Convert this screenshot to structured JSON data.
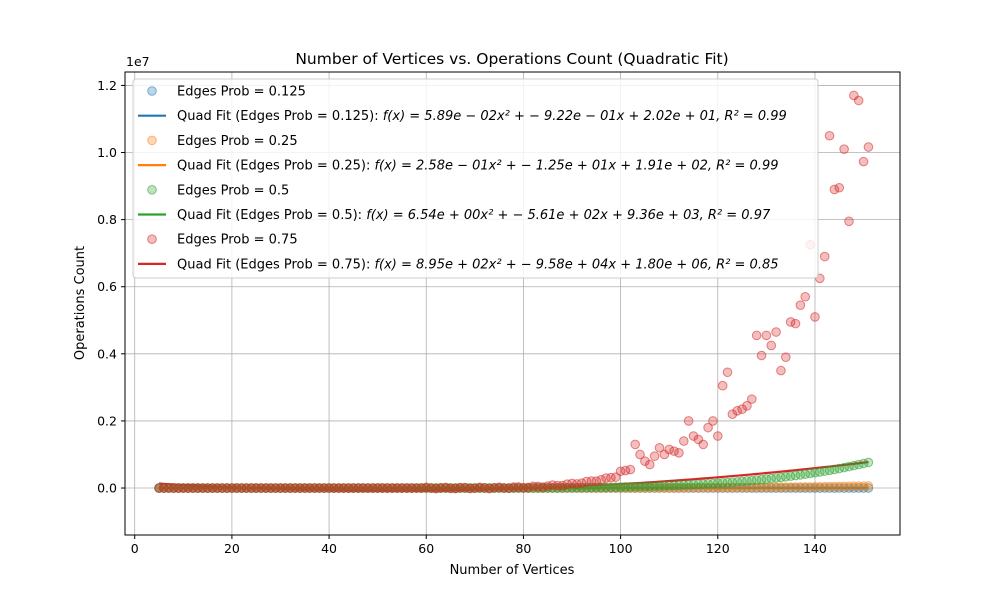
{
  "chart_data": {
    "type": "scatter",
    "title": "Number of Vertices vs. Operations Count (Quadratic Fit)",
    "xlabel": "Number of Vertices",
    "ylabel": "Operations Count",
    "y_scale_label": "1e7",
    "xlim": [
      -2,
      157.5
    ],
    "ylim": [
      -1.4,
      12.4
    ],
    "x_ticks": [
      0,
      20,
      40,
      60,
      80,
      100,
      120,
      140
    ],
    "x_tick_labels": [
      "0",
      "20",
      "40",
      "60",
      "80",
      "100",
      "120",
      "140"
    ],
    "y_ticks": [
      0,
      2,
      4,
      6,
      8,
      10,
      12
    ],
    "y_tick_labels": [
      "0.0",
      "0.2",
      "0.4",
      "0.6",
      "0.8",
      "1.0",
      "1.2"
    ],
    "grid": true,
    "legend_position": "upper-left",
    "x_range": [
      5,
      151
    ],
    "series": [
      {
        "name": "Edges Prob = 0.125",
        "fit_name_prefix": "Quad Fit (Edges Prob = 0.125): ",
        "fit_formula": "f(x) = 5.89e − 02x² + − 9.22e − 01x + 2.02e + 01, R² = 0.99",
        "coeffs": [
          0.0589,
          -0.922,
          20.2
        ],
        "color": "#1f77b4",
        "growth_scale": 0.0
      },
      {
        "name": "Edges Prob = 0.25",
        "fit_name_prefix": "Quad Fit (Edges Prob = 0.25): ",
        "fit_formula": "f(x) = 2.58e − 01x² + − 1.25e + 01x + 1.91e + 02, R² = 0.99",
        "coeffs": [
          0.258,
          -12.5,
          191
        ],
        "color": "#ff7f0e",
        "growth_scale": 0.006
      },
      {
        "name": "Edges Prob = 0.5",
        "fit_name_prefix": "Quad Fit (Edges Prob = 0.5): ",
        "fit_formula": "f(x) = 6.54e + 00x² + − 5.61e + 02x + 9.36e + 03, R² = 0.97",
        "coeffs": [
          6.54,
          -561,
          9360
        ],
        "color": "#2ca02c",
        "growth_scale": 0.075
      },
      {
        "name": "Edges Prob = 0.75",
        "fit_name_prefix": "Quad Fit (Edges Prob = 0.75): ",
        "fit_formula": "f(x) = 8.95e + 02x² + − 9.58e + 04x + 1.80e + 06, R² = 0.85",
        "coeffs": [
          895,
          -95800,
          1800000
        ],
        "color": "#d62728",
        "growth_scale": 1.0,
        "points": [
          [
            100,
            0.5
          ],
          [
            101,
            0.52
          ],
          [
            102,
            0.55
          ],
          [
            103,
            1.3
          ],
          [
            104,
            1.0
          ],
          [
            105,
            0.8
          ],
          [
            106,
            0.7
          ],
          [
            107,
            0.95
          ],
          [
            108,
            1.2
          ],
          [
            109,
            1.0
          ],
          [
            110,
            1.15
          ],
          [
            111,
            1.1
          ],
          [
            112,
            1.05
          ],
          [
            113,
            1.4
          ],
          [
            114,
            2.0
          ],
          [
            115,
            1.55
          ],
          [
            116,
            1.45
          ],
          [
            117,
            1.3
          ],
          [
            118,
            1.8
          ],
          [
            119,
            2.0
          ],
          [
            120,
            1.55
          ],
          [
            121,
            3.05
          ],
          [
            122,
            3.45
          ],
          [
            123,
            2.2
          ],
          [
            124,
            2.3
          ],
          [
            125,
            2.35
          ],
          [
            126,
            2.45
          ],
          [
            127,
            2.65
          ],
          [
            128,
            4.55
          ],
          [
            129,
            3.95
          ],
          [
            130,
            4.55
          ],
          [
            131,
            4.25
          ],
          [
            132,
            4.65
          ],
          [
            133,
            3.5
          ],
          [
            134,
            3.9
          ],
          [
            135,
            4.95
          ],
          [
            136,
            4.9
          ],
          [
            137,
            5.45
          ],
          [
            138,
            5.7
          ],
          [
            139,
            7.25
          ],
          [
            140,
            5.1
          ],
          [
            141,
            6.25
          ],
          [
            142,
            6.9
          ],
          [
            143,
            10.5
          ],
          [
            144,
            8.9
          ],
          [
            145,
            8.95
          ],
          [
            146,
            10.1
          ],
          [
            147,
            7.95
          ],
          [
            148,
            11.7
          ],
          [
            149,
            11.55
          ]
        ]
      }
    ]
  }
}
